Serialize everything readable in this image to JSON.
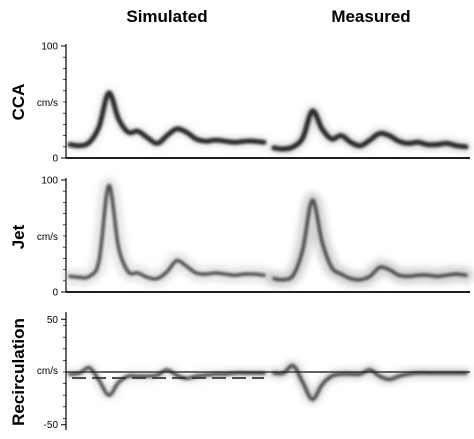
{
  "figure": {
    "columns": [
      "Simulated",
      "Measured"
    ]
  },
  "chart_data": [
    {
      "type": "area",
      "row": "CCA",
      "ylabel": "CCA",
      "unit": "cm/s",
      "yticks": [
        0,
        100
      ],
      "ylim": [
        0,
        100
      ],
      "panels": [
        {
          "column": "Simulated",
          "x": [
            0,
            0.05,
            0.1,
            0.15,
            0.2,
            0.25,
            0.3,
            0.35,
            0.4,
            0.45,
            0.5,
            0.55,
            0.6,
            0.65,
            0.7,
            0.75,
            0.8,
            0.85,
            0.9,
            0.95,
            1.0
          ],
          "values": [
            12,
            11,
            14,
            28,
            58,
            35,
            23,
            24,
            18,
            13,
            20,
            26,
            23,
            17,
            15,
            16,
            15,
            14,
            15,
            15,
            14
          ]
        },
        {
          "column": "Measured",
          "x": [
            0,
            0.05,
            0.1,
            0.15,
            0.2,
            0.25,
            0.3,
            0.35,
            0.4,
            0.45,
            0.5,
            0.55,
            0.6,
            0.65,
            0.7,
            0.75,
            0.8,
            0.85,
            0.9,
            0.95,
            1.0
          ],
          "values": [
            9,
            8,
            10,
            18,
            42,
            26,
            17,
            20,
            14,
            11,
            16,
            22,
            20,
            15,
            13,
            14,
            12,
            12,
            13,
            11,
            10
          ]
        }
      ]
    },
    {
      "type": "area",
      "row": "Jet",
      "ylabel": "Jet",
      "unit": "cm/s",
      "yticks": [
        0,
        100
      ],
      "ylim": [
        0,
        100
      ],
      "panels": [
        {
          "column": "Simulated",
          "x": [
            0,
            0.05,
            0.1,
            0.15,
            0.2,
            0.25,
            0.3,
            0.35,
            0.4,
            0.45,
            0.5,
            0.55,
            0.6,
            0.65,
            0.7,
            0.75,
            0.8,
            0.85,
            0.9,
            0.95,
            1.0
          ],
          "values": [
            14,
            13,
            14,
            28,
            95,
            40,
            18,
            17,
            13,
            12,
            18,
            28,
            23,
            17,
            16,
            17,
            16,
            15,
            16,
            16,
            15
          ]
        },
        {
          "column": "Measured",
          "x": [
            0,
            0.05,
            0.1,
            0.15,
            0.2,
            0.25,
            0.3,
            0.35,
            0.4,
            0.45,
            0.5,
            0.55,
            0.6,
            0.65,
            0.7,
            0.75,
            0.8,
            0.85,
            0.9,
            0.95,
            1.0
          ],
          "values": [
            12,
            11,
            15,
            38,
            82,
            45,
            22,
            16,
            12,
            11,
            14,
            22,
            20,
            15,
            14,
            15,
            15,
            14,
            15,
            16,
            15
          ]
        }
      ]
    },
    {
      "type": "area",
      "row": "Recirculation",
      "ylabel": "Recirculation",
      "unit": "cm/s",
      "yticks": [
        -50,
        50
      ],
      "ylim": [
        -55,
        55
      ],
      "panels": [
        {
          "column": "Simulated",
          "x": [
            0,
            0.05,
            0.1,
            0.15,
            0.2,
            0.25,
            0.3,
            0.35,
            0.4,
            0.45,
            0.5,
            0.55,
            0.6,
            0.65,
            0.7,
            0.75,
            0.8,
            0.85,
            0.9,
            0.95,
            1.0
          ],
          "values": [
            -2,
            -1,
            4,
            -8,
            -22,
            -10,
            -4,
            -4,
            -4,
            -3,
            2,
            -3,
            -6,
            -4,
            -3,
            -2,
            -2,
            -1,
            -1,
            -1,
            -1
          ]
        },
        {
          "column": "Measured",
          "x": [
            0,
            0.05,
            0.1,
            0.15,
            0.2,
            0.25,
            0.3,
            0.35,
            0.4,
            0.45,
            0.5,
            0.55,
            0.6,
            0.65,
            0.7,
            0.75,
            0.8,
            0.85,
            0.9,
            0.95,
            1.0
          ],
          "values": [
            -1,
            -1,
            6,
            -10,
            -26,
            -12,
            -4,
            -2,
            -2,
            -2,
            2,
            -4,
            -7,
            -4,
            -2,
            -1,
            -1,
            -1,
            -1,
            -1,
            -1
          ]
        }
      ]
    }
  ]
}
